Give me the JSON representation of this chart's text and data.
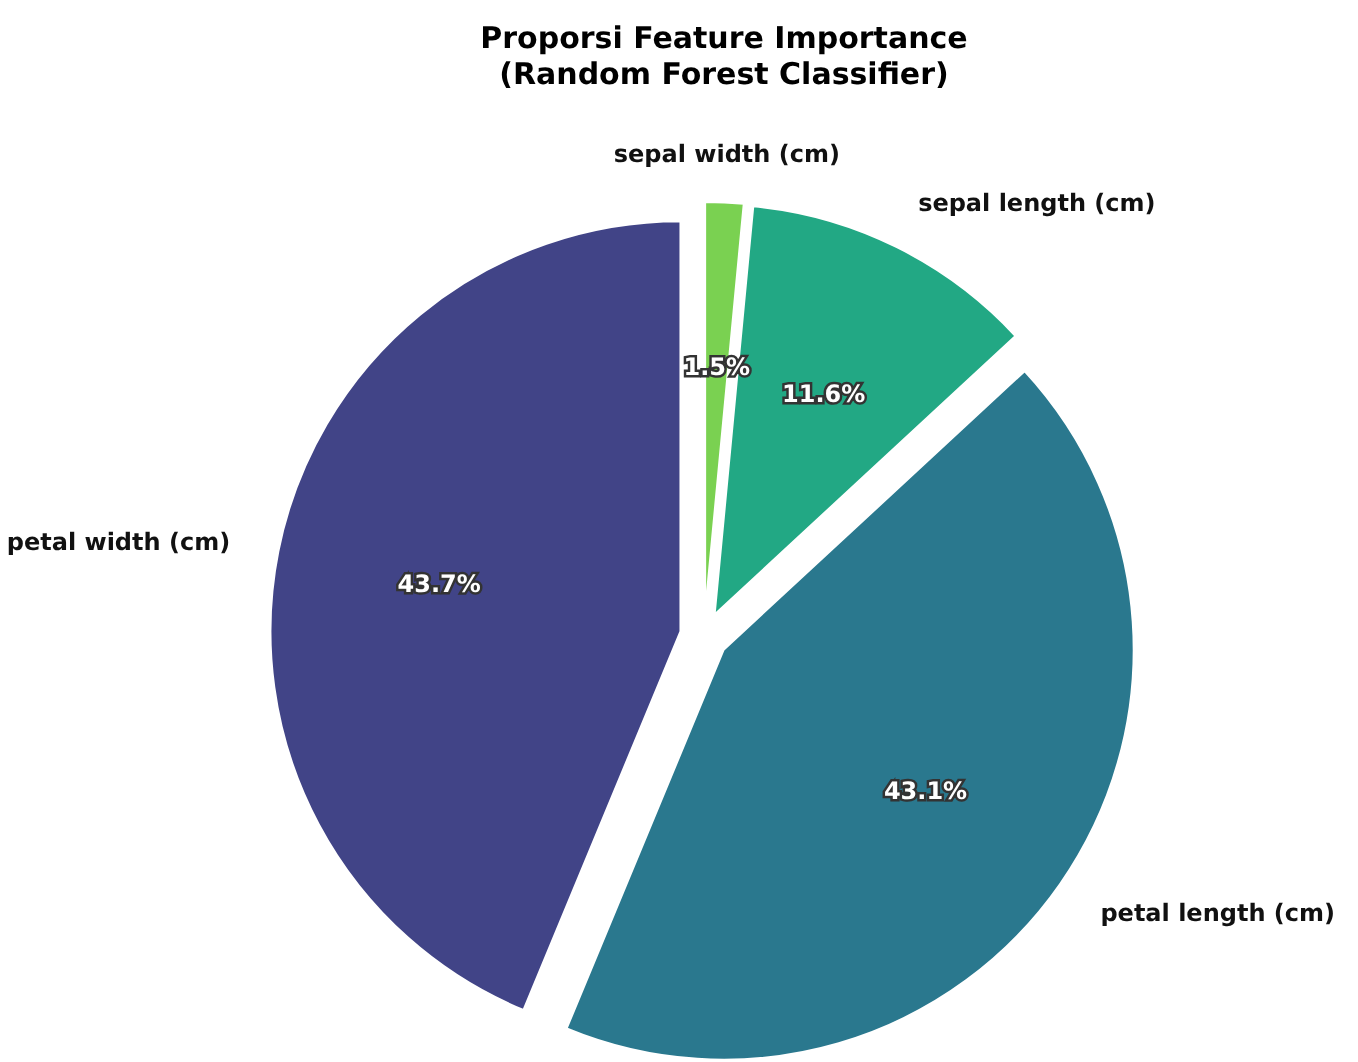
{
  "chart_data": {
    "type": "pie",
    "title": "Proporsi Feature Importance\n(Random Forest Classifier)",
    "categories": [
      "petal width (cm)",
      "petal length (cm)",
      "sepal length (cm)",
      "sepal width (cm)"
    ],
    "values": [
      43.7,
      43.1,
      11.6,
      1.5
    ],
    "colors": [
      "#414487",
      "#2a788e",
      "#22a884",
      "#7ad151"
    ],
    "value_labels": [
      "43.7%",
      "43.1%",
      "11.6%",
      "1.5%"
    ]
  }
}
